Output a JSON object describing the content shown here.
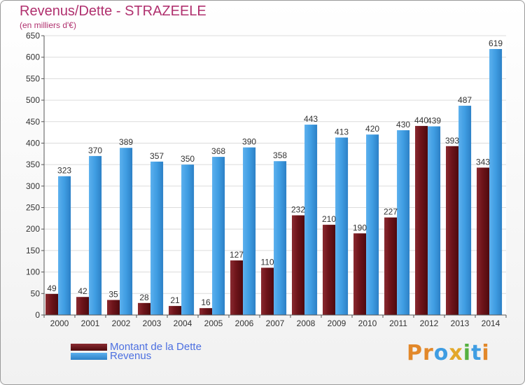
{
  "chart": {
    "title": "Revenus/Dette - STRAZEELE",
    "subtitle": "(en milliers d'€)"
  },
  "legend": {
    "items": [
      {
        "label": "Montant de la Dette",
        "color": "#7a1c22"
      },
      {
        "label": "Revenus",
        "color": "#3f9de2"
      }
    ]
  },
  "logo": {
    "text": "Proxiti",
    "colors": [
      "#e2882a",
      "#e2882a",
      "#3f9de2",
      "#e2a82a",
      "#55b140",
      "#3f9de2",
      "#e2882a"
    ]
  },
  "chart_data": {
    "type": "bar",
    "title": "Revenus/Dette - STRAZEELE",
    "subtitle": "(en milliers d'€)",
    "xlabel": "",
    "ylabel": "",
    "ylim": [
      0,
      650
    ],
    "yticks": [
      0,
      50,
      100,
      150,
      200,
      250,
      300,
      350,
      400,
      450,
      500,
      550,
      600,
      650
    ],
    "grid": true,
    "legend_position": "bottom-left",
    "categories": [
      "2000",
      "2001",
      "2002",
      "2003",
      "2004",
      "2005",
      "2006",
      "2007",
      "2008",
      "2009",
      "2010",
      "2011",
      "2012",
      "2013",
      "2014"
    ],
    "series": [
      {
        "name": "Montant de la Dette",
        "color": "#7a1c22",
        "values": [
          49,
          42,
          35,
          28,
          21,
          16,
          127,
          110,
          232,
          210,
          190,
          227,
          440,
          393,
          343
        ]
      },
      {
        "name": "Revenus",
        "color": "#3f9de2",
        "values": [
          323,
          370,
          389,
          357,
          350,
          368,
          390,
          358,
          443,
          413,
          420,
          430,
          439,
          487,
          619
        ]
      }
    ]
  }
}
